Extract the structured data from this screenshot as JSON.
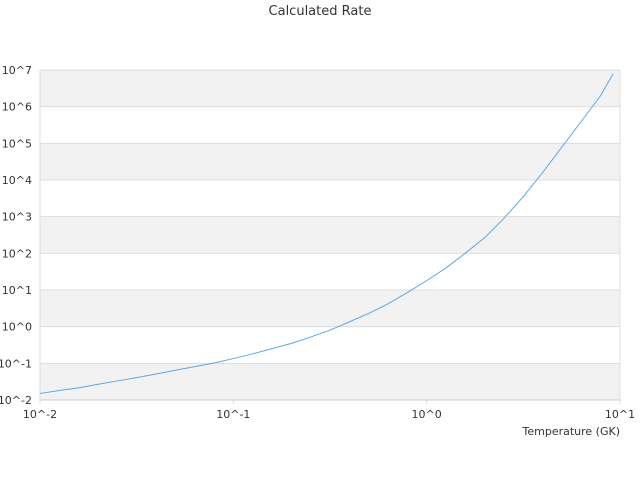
{
  "chart_data": {
    "type": "line",
    "title": "Calculated Rate",
    "xlabel": "Temperature (GK)",
    "ylabel": "",
    "x_scale": "log",
    "y_scale": "log",
    "xlim": [
      0.01,
      10
    ],
    "ylim": [
      0.01,
      10000000
    ],
    "grid": true,
    "legend": "none",
    "x_tick_labels": [
      "10^-2",
      "10^-1",
      "10^0",
      "10^1"
    ],
    "y_tick_labels": [
      "10^-2",
      "10^-1",
      "10^0",
      "10^1",
      "10^2",
      "10^3",
      "10^4",
      "10^5",
      "10^6",
      "10^7"
    ],
    "colors": {
      "series": "#5aa9e6",
      "band": "#f2f2f2",
      "grid": "#dddddd",
      "text": "#333333"
    },
    "series": [
      {
        "x": [
          0.01,
          0.0126,
          0.0158,
          0.02,
          0.0251,
          0.0316,
          0.0398,
          0.0501,
          0.0631,
          0.0794,
          0.1,
          0.126,
          0.158,
          0.2,
          0.251,
          0.316,
          0.398,
          0.501,
          0.631,
          0.794,
          1.0,
          1.26,
          1.58,
          2.0,
          2.51,
          3.16,
          3.98,
          5.01,
          6.31,
          7.94,
          9.2
        ],
        "y": [
          0.0151,
          0.0182,
          0.0214,
          0.0269,
          0.0331,
          0.0407,
          0.0513,
          0.0646,
          0.0813,
          0.102,
          0.135,
          0.182,
          0.25,
          0.35,
          0.52,
          0.8,
          1.35,
          2.3,
          4.2,
          8.5,
          18,
          40,
          100,
          270,
          900,
          3500,
          16000,
          80000,
          400000,
          2000000,
          7800000
        ]
      }
    ]
  }
}
